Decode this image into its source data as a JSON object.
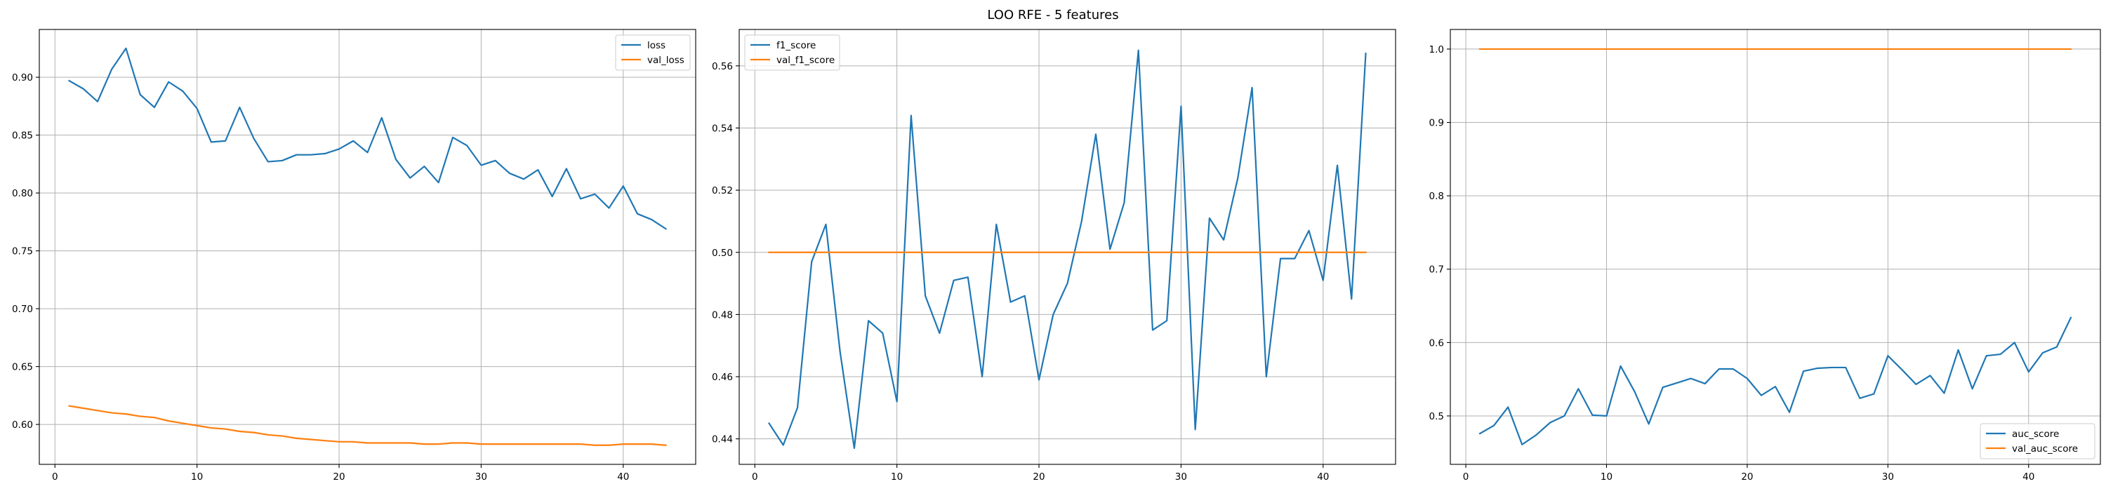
{
  "figure": {
    "title": "LOO RFE - 5 features"
  },
  "colors": {
    "series1": "#1f77b4",
    "series2": "#ff7f0e",
    "grid": "#b0b0b0"
  },
  "chart_data": [
    {
      "type": "line",
      "title": "",
      "xlabel": "",
      "ylabel": "",
      "xlim": [
        -1.1,
        45.1
      ],
      "ylim": [
        0.5655,
        0.9413
      ],
      "xticks": [
        0,
        10,
        20,
        30,
        40
      ],
      "yticks": [
        0.6,
        0.65,
        0.7,
        0.75,
        0.8,
        0.85,
        0.9
      ],
      "ytick_labels": [
        "0.60",
        "0.65",
        "0.70",
        "0.75",
        "0.80",
        "0.85",
        "0.90"
      ],
      "grid": true,
      "legend_position": "top-right",
      "x": [
        1,
        2,
        3,
        4,
        5,
        6,
        7,
        8,
        9,
        10,
        11,
        12,
        13,
        14,
        15,
        16,
        17,
        18,
        19,
        20,
        21,
        22,
        23,
        24,
        25,
        26,
        27,
        28,
        29,
        30,
        31,
        32,
        33,
        34,
        35,
        36,
        37,
        38,
        39,
        40,
        41,
        42,
        43
      ],
      "series": [
        {
          "name": "loss",
          "color": "#1f77b4",
          "values": [
            0.897,
            0.89,
            0.879,
            0.907,
            0.925,
            0.885,
            0.874,
            0.896,
            0.888,
            0.873,
            0.844,
            0.845,
            0.874,
            0.847,
            0.827,
            0.828,
            0.833,
            0.833,
            0.834,
            0.838,
            0.845,
            0.835,
            0.865,
            0.829,
            0.813,
            0.823,
            0.809,
            0.848,
            0.841,
            0.824,
            0.828,
            0.817,
            0.812,
            0.82,
            0.797,
            0.821,
            0.795,
            0.799,
            0.787,
            0.806,
            0.782,
            0.777,
            0.769
          ]
        },
        {
          "name": "val_loss",
          "color": "#ff7f0e",
          "values": [
            0.616,
            0.614,
            0.612,
            0.61,
            0.609,
            0.607,
            0.606,
            0.603,
            0.601,
            0.599,
            0.597,
            0.596,
            0.594,
            0.593,
            0.591,
            0.59,
            0.588,
            0.587,
            0.586,
            0.585,
            0.585,
            0.584,
            0.584,
            0.584,
            0.584,
            0.583,
            0.583,
            0.584,
            0.584,
            0.583,
            0.583,
            0.583,
            0.583,
            0.583,
            0.583,
            0.583,
            0.583,
            0.582,
            0.582,
            0.583,
            0.583,
            0.583,
            0.582
          ]
        }
      ]
    },
    {
      "type": "line",
      "title": "",
      "xlabel": "",
      "ylabel": "",
      "xlim": [
        -1.1,
        45.1
      ],
      "ylim": [
        0.4318,
        0.5717
      ],
      "xticks": [
        0,
        10,
        20,
        30,
        40
      ],
      "yticks": [
        0.44,
        0.46,
        0.48,
        0.5,
        0.52,
        0.54,
        0.56
      ],
      "ytick_labels": [
        "0.44",
        "0.46",
        "0.48",
        "0.50",
        "0.52",
        "0.54",
        "0.56"
      ],
      "grid": true,
      "legend_position": "top-left",
      "x": [
        1,
        2,
        3,
        4,
        5,
        6,
        7,
        8,
        9,
        10,
        11,
        12,
        13,
        14,
        15,
        16,
        17,
        18,
        19,
        20,
        21,
        22,
        23,
        24,
        25,
        26,
        27,
        28,
        29,
        30,
        31,
        32,
        33,
        34,
        35,
        36,
        37,
        38,
        39,
        40,
        41,
        42,
        43
      ],
      "series": [
        {
          "name": "f1_score",
          "color": "#1f77b4",
          "values": [
            0.445,
            0.438,
            0.45,
            0.497,
            0.509,
            0.468,
            0.437,
            0.478,
            0.474,
            0.452,
            0.544,
            0.486,
            0.474,
            0.491,
            0.492,
            0.46,
            0.509,
            0.484,
            0.486,
            0.459,
            0.48,
            0.49,
            0.51,
            0.538,
            0.501,
            0.516,
            0.565,
            0.475,
            0.478,
            0.547,
            0.443,
            0.511,
            0.504,
            0.524,
            0.553,
            0.46,
            0.498,
            0.498,
            0.507,
            0.491,
            0.528,
            0.485,
            0.564
          ]
        },
        {
          "name": "val_f1_score",
          "color": "#ff7f0e",
          "values": [
            0.5,
            0.5,
            0.5,
            0.5,
            0.5,
            0.5,
            0.5,
            0.5,
            0.5,
            0.5,
            0.5,
            0.5,
            0.5,
            0.5,
            0.5,
            0.5,
            0.5,
            0.5,
            0.5,
            0.5,
            0.5,
            0.5,
            0.5,
            0.5,
            0.5,
            0.5,
            0.5,
            0.5,
            0.5,
            0.5,
            0.5,
            0.5,
            0.5,
            0.5,
            0.5,
            0.5,
            0.5,
            0.5,
            0.5,
            0.5,
            0.5,
            0.5,
            0.5
          ]
        }
      ]
    },
    {
      "type": "line",
      "title": "",
      "xlabel": "",
      "ylabel": "",
      "xlim": [
        -1.1,
        45.1
      ],
      "ylim": [
        0.434,
        1.0267
      ],
      "xticks": [
        0,
        10,
        20,
        30,
        40
      ],
      "yticks": [
        0.5,
        0.6,
        0.7,
        0.8,
        0.9,
        1.0
      ],
      "ytick_labels": [
        "0.5",
        "0.6",
        "0.7",
        "0.8",
        "0.9",
        "1.0"
      ],
      "grid": true,
      "legend_position": "bottom-right",
      "x": [
        1,
        2,
        3,
        4,
        5,
        6,
        7,
        8,
        9,
        10,
        11,
        12,
        13,
        14,
        15,
        16,
        17,
        18,
        19,
        20,
        21,
        22,
        23,
        24,
        25,
        26,
        27,
        28,
        29,
        30,
        31,
        32,
        33,
        34,
        35,
        36,
        37,
        38,
        39,
        40,
        41,
        42,
        43
      ],
      "series": [
        {
          "name": "auc_score",
          "color": "#1f77b4",
          "values": [
            0.476,
            0.487,
            0.512,
            0.461,
            0.474,
            0.491,
            0.5,
            0.537,
            0.501,
            0.5,
            0.568,
            0.533,
            0.489,
            0.539,
            0.545,
            0.551,
            0.544,
            0.564,
            0.564,
            0.551,
            0.528,
            0.54,
            0.505,
            0.561,
            0.565,
            0.566,
            0.566,
            0.524,
            0.53,
            0.582,
            0.563,
            0.543,
            0.555,
            0.531,
            0.59,
            0.537,
            0.582,
            0.584,
            0.6,
            0.56,
            0.586,
            0.594,
            0.634
          ]
        },
        {
          "name": "val_auc_score",
          "color": "#ff7f0e",
          "values": [
            1.0,
            1.0,
            1.0,
            1.0,
            1.0,
            1.0,
            1.0,
            1.0,
            1.0,
            1.0,
            1.0,
            1.0,
            1.0,
            1.0,
            1.0,
            1.0,
            1.0,
            1.0,
            1.0,
            1.0,
            1.0,
            1.0,
            1.0,
            1.0,
            1.0,
            1.0,
            1.0,
            1.0,
            1.0,
            1.0,
            1.0,
            1.0,
            1.0,
            1.0,
            1.0,
            1.0,
            1.0,
            1.0,
            1.0,
            1.0,
            1.0,
            1.0,
            1.0
          ]
        }
      ]
    }
  ]
}
